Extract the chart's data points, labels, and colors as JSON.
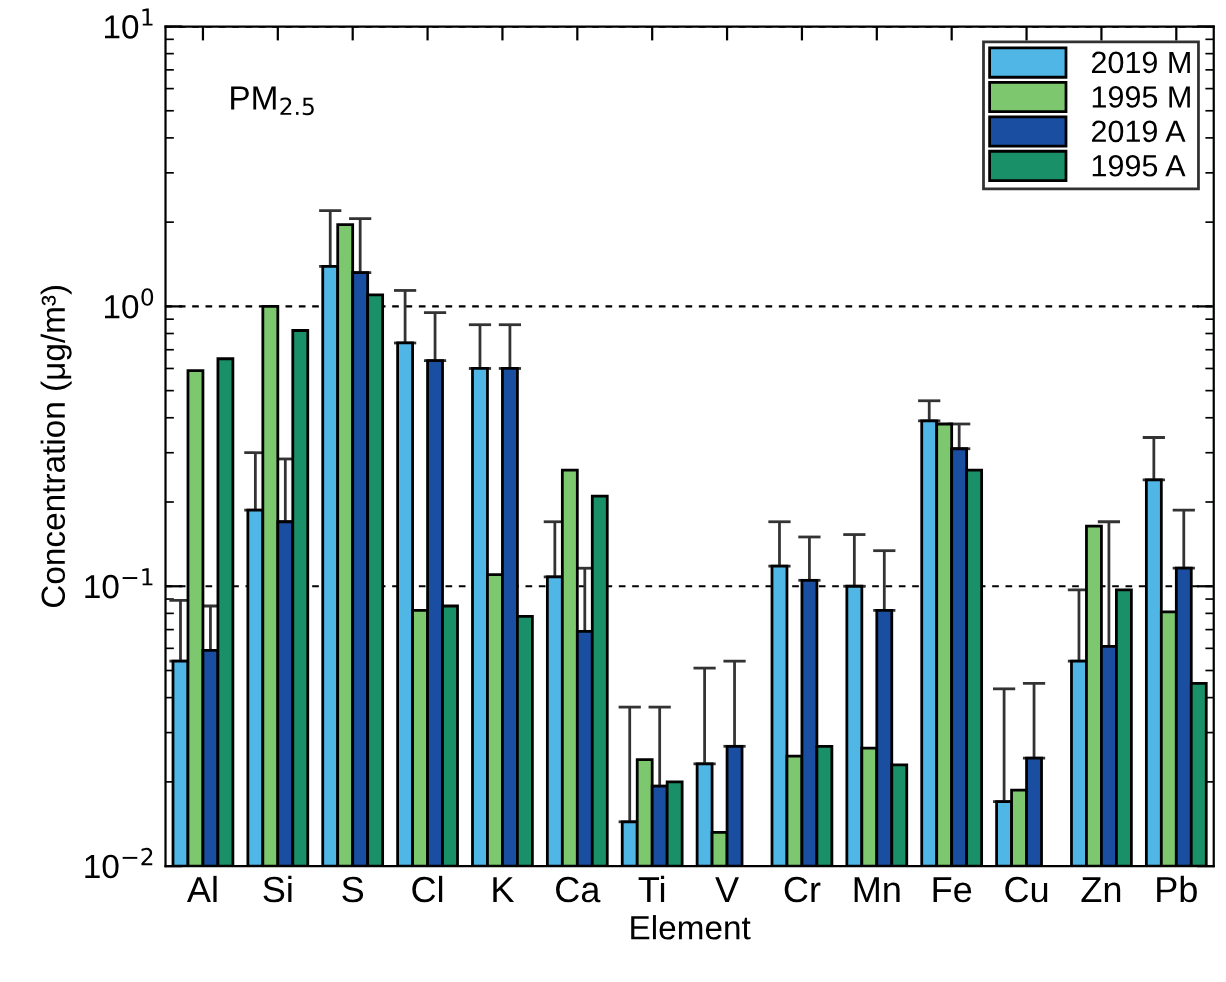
{
  "chart_data": {
    "type": "bar",
    "xlabel": "Element",
    "ylabel": "Concentration (μg/m³)",
    "categories": [
      "Al",
      "Si",
      "S",
      "Cl",
      "K",
      "Ca",
      "Ti",
      "V",
      "Cr",
      "Mn",
      "Fe",
      "Cu",
      "Zn",
      "Pb"
    ],
    "series": [
      {
        "name": "2019 M",
        "color": "#4fb6e6",
        "values": [
          0.054,
          0.187,
          1.39,
          0.74,
          0.6,
          0.108,
          0.0144,
          0.0232,
          0.118,
          0.1,
          0.39,
          0.017,
          0.054,
          0.24
        ],
        "errors": [
          [
            0.054,
            0.089
          ],
          [
            0.187,
            0.3
          ],
          [
            1.39,
            2.2
          ],
          [
            0.74,
            1.14
          ],
          [
            0.6,
            0.86
          ],
          [
            0.108,
            0.17
          ],
          [
            0.0144,
            0.037
          ],
          [
            0.0232,
            0.051
          ],
          [
            0.118,
            0.17
          ],
          [
            0.1,
            0.153
          ],
          [
            0.39,
            0.46
          ],
          [
            0.017,
            0.043
          ],
          [
            0.054,
            0.097
          ],
          [
            0.24,
            0.34
          ]
        ]
      },
      {
        "name": "1995 M",
        "color": "#7dc86e",
        "values": [
          0.59,
          1.0,
          1.96,
          0.082,
          0.11,
          0.26,
          0.024,
          0.0132,
          0.0247,
          0.0264,
          0.38,
          0.0187,
          0.164,
          0.081
        ]
      },
      {
        "name": "2019 A",
        "color": "#1a4ea0",
        "values": [
          0.059,
          0.17,
          1.32,
          0.64,
          0.6,
          0.069,
          0.0193,
          0.0268,
          0.105,
          0.082,
          0.31,
          0.0243,
          0.061,
          0.116
        ],
        "errors": [
          [
            0.059,
            0.085
          ],
          [
            0.17,
            0.285
          ],
          [
            1.32,
            2.06
          ],
          [
            0.64,
            0.95
          ],
          [
            0.6,
            0.86
          ],
          [
            0.069,
            0.116
          ],
          [
            0.0193,
            0.037
          ],
          [
            0.0268,
            0.054
          ],
          [
            0.105,
            0.15
          ],
          [
            0.082,
            0.134
          ],
          [
            0.31,
            0.38
          ],
          [
            0.0243,
            0.045
          ],
          [
            0.061,
            0.17
          ],
          [
            0.116,
            0.187
          ]
        ]
      },
      {
        "name": "1995 A",
        "color": "#1a9068",
        "values": [
          0.65,
          0.82,
          1.1,
          0.085,
          0.078,
          0.21,
          0.02,
          null,
          0.0268,
          0.023,
          0.26,
          null,
          0.097,
          0.045
        ]
      }
    ],
    "log": "y",
    "ylim": [
      0.01,
      10
    ],
    "yticks": [
      {
        "value": 0.01,
        "label": "10$^{−2}$"
      },
      {
        "value": 0.1,
        "label": "10$^{−1}$"
      },
      {
        "value": 1,
        "label": "10$^{0}$"
      },
      {
        "value": 10,
        "label": "10$^{1}$"
      }
    ],
    "grid": "y",
    "line_style": "dashed",
    "legend": "top right",
    "annotations": [
      "PM$_{2.5}$"
    ]
  }
}
